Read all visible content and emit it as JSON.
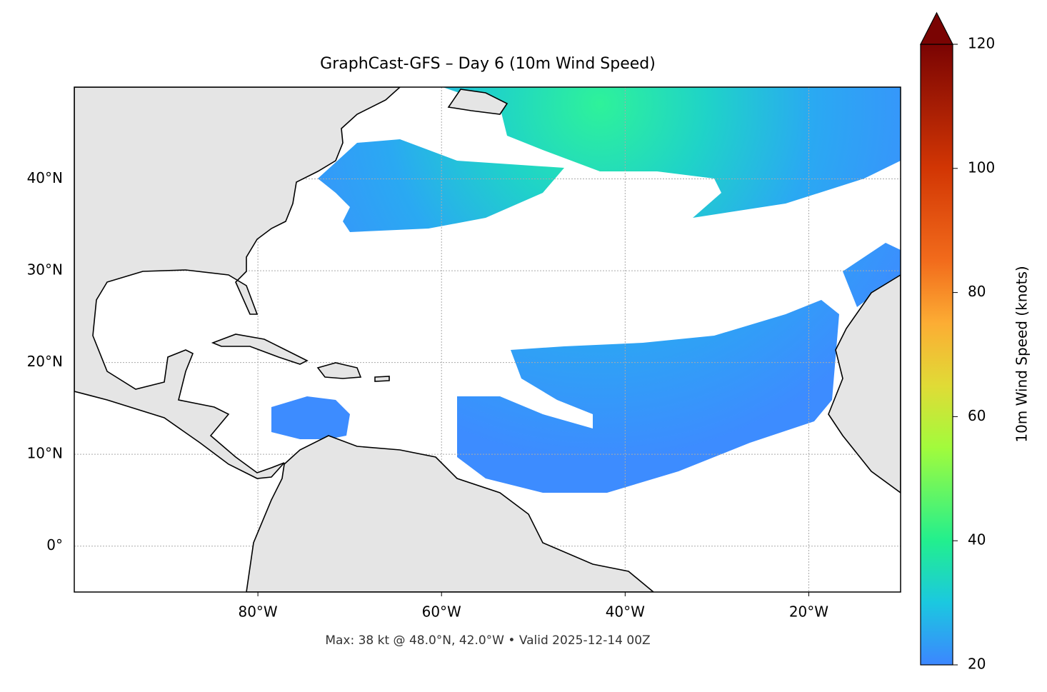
{
  "chart_data": {
    "type": "map",
    "title": "GraphCast-GFS – Day 6 (10m Wind Speed)",
    "footer": "Max: 38 kt @ 48.0°N, 42.0°W • Valid 2025-12-14 00Z",
    "xlim": [
      -100,
      -10
    ],
    "ylim": [
      -5,
      50
    ],
    "xticks": [
      {
        "value": -80,
        "label": "80°W"
      },
      {
        "value": -60,
        "label": "60°W"
      },
      {
        "value": -40,
        "label": "40°W"
      },
      {
        "value": -20,
        "label": "20°W"
      }
    ],
    "yticks": [
      {
        "value": 0,
        "label": "0°"
      },
      {
        "value": 10,
        "label": "10°N"
      },
      {
        "value": 20,
        "label": "20°N"
      },
      {
        "value": 30,
        "label": "30°N"
      },
      {
        "value": 40,
        "label": "40°N"
      }
    ],
    "grid": true,
    "colorbar": {
      "label": "10m Wind Speed (knots)",
      "lim": [
        20,
        120
      ],
      "ticks": [
        20,
        40,
        60,
        80,
        100,
        120
      ]
    }
  }
}
